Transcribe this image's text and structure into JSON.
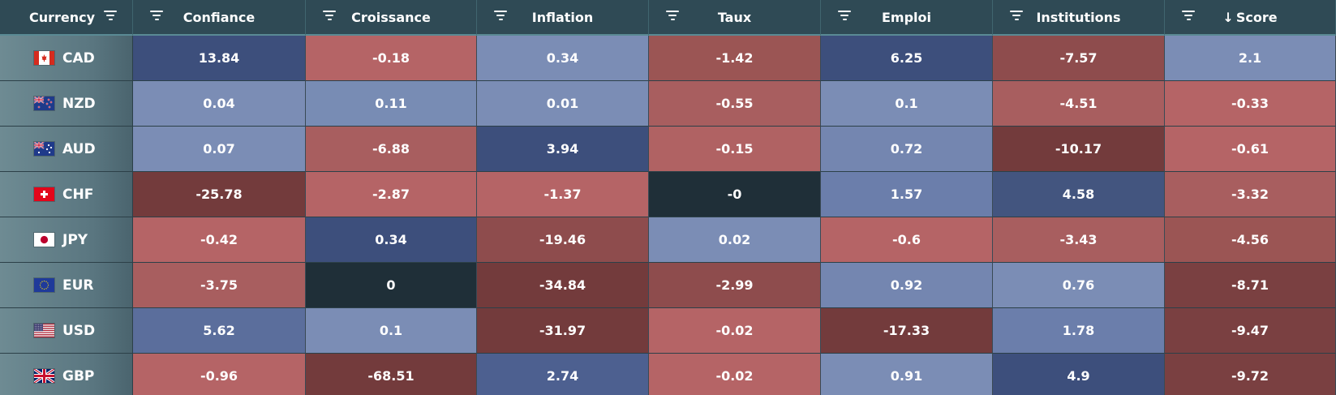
{
  "columns": [
    {
      "key": "currency",
      "label": "Currency",
      "sorted": false
    },
    {
      "key": "confiance",
      "label": "Confiance",
      "sorted": false
    },
    {
      "key": "croissance",
      "label": "Croissance",
      "sorted": false
    },
    {
      "key": "inflation",
      "label": "Inflation",
      "sorted": false
    },
    {
      "key": "taux",
      "label": "Taux",
      "sorted": false
    },
    {
      "key": "emploi",
      "label": "Emploi",
      "sorted": false
    },
    {
      "key": "institutions",
      "label": "Institutions",
      "sorted": false
    },
    {
      "key": "score",
      "label": "Score",
      "sorted": true,
      "sort_direction": "descending",
      "sort_icon": "arrow-down-icon"
    }
  ],
  "rows": [
    {
      "currency": "CAD",
      "flag": "canada-flag-icon",
      "values": [
        "13.84",
        "-0.18",
        "0.34",
        "-1.42",
        "6.25",
        "-7.57",
        "2.1"
      ]
    },
    {
      "currency": "NZD",
      "flag": "new-zealand-flag-icon",
      "values": [
        "0.04",
        "0.11",
        "0.01",
        "-0.55",
        "0.1",
        "-4.51",
        "-0.33"
      ]
    },
    {
      "currency": "AUD",
      "flag": "australia-flag-icon",
      "values": [
        "0.07",
        "-6.88",
        "3.94",
        "-0.15",
        "0.72",
        "-10.17",
        "-0.61"
      ]
    },
    {
      "currency": "CHF",
      "flag": "switzerland-flag-icon",
      "values": [
        "-25.78",
        "-2.87",
        "-1.37",
        "-0",
        "1.57",
        "4.58",
        "-3.32"
      ]
    },
    {
      "currency": "JPY",
      "flag": "japan-flag-icon",
      "values": [
        "-0.42",
        "0.34",
        "-19.46",
        "0.02",
        "-0.6",
        "-3.43",
        "-4.56"
      ]
    },
    {
      "currency": "EUR",
      "flag": "eu-flag-icon",
      "values": [
        "-3.75",
        "0",
        "-34.84",
        "-2.99",
        "0.92",
        "0.76",
        "-8.71"
      ]
    },
    {
      "currency": "USD",
      "flag": "usa-flag-icon",
      "values": [
        "5.62",
        "0.1",
        "-31.97",
        "-0.02",
        "-17.33",
        "1.78",
        "-9.47"
      ]
    },
    {
      "currency": "GBP",
      "flag": "uk-flag-icon",
      "values": [
        "-0.96",
        "-68.51",
        "2.74",
        "-0.02",
        "0.91",
        "4.9",
        "-9.72"
      ]
    }
  ],
  "cell_colors": [
    [
      "#3d4f7c",
      "#b56466",
      "#7b8db5",
      "#9b5554",
      "#3d4f7c",
      "#8e4c4d",
      "#7b8db5"
    ],
    [
      "#7b8db5",
      "#788cb4",
      "#7b8db5",
      "#a85e5f",
      "#7b8db5",
      "#a85e5f",
      "#b56466"
    ],
    [
      "#7b8db5",
      "#a85e5f",
      "#3d4f7c",
      "#b06263",
      "#7486b0",
      "#733b3c",
      "#b56466"
    ],
    [
      "#733b3c",
      "#b56466",
      "#b56466",
      "#1f2f38",
      "#6b7eab",
      "#43557f",
      "#a85e5f"
    ],
    [
      "#b56466",
      "#3d4f7c",
      "#8e4c4d",
      "#7b8db5",
      "#b56466",
      "#a85e5f",
      "#9b5554"
    ],
    [
      "#a85e5f",
      "#1f2f38",
      "#733b3c",
      "#8e4c4d",
      "#7486b0",
      "#7b8db5",
      "#7a4041"
    ],
    [
      "#5b6e9c",
      "#7b8db5",
      "#733b3c",
      "#b56466",
      "#733b3c",
      "#6b7eab",
      "#7a4041"
    ],
    [
      "#b56466",
      "#733b3c",
      "#4d6090",
      "#b56466",
      "#7b8db5",
      "#3d4f7c",
      "#7a4041"
    ]
  ],
  "header_icon": "filter-icon"
}
